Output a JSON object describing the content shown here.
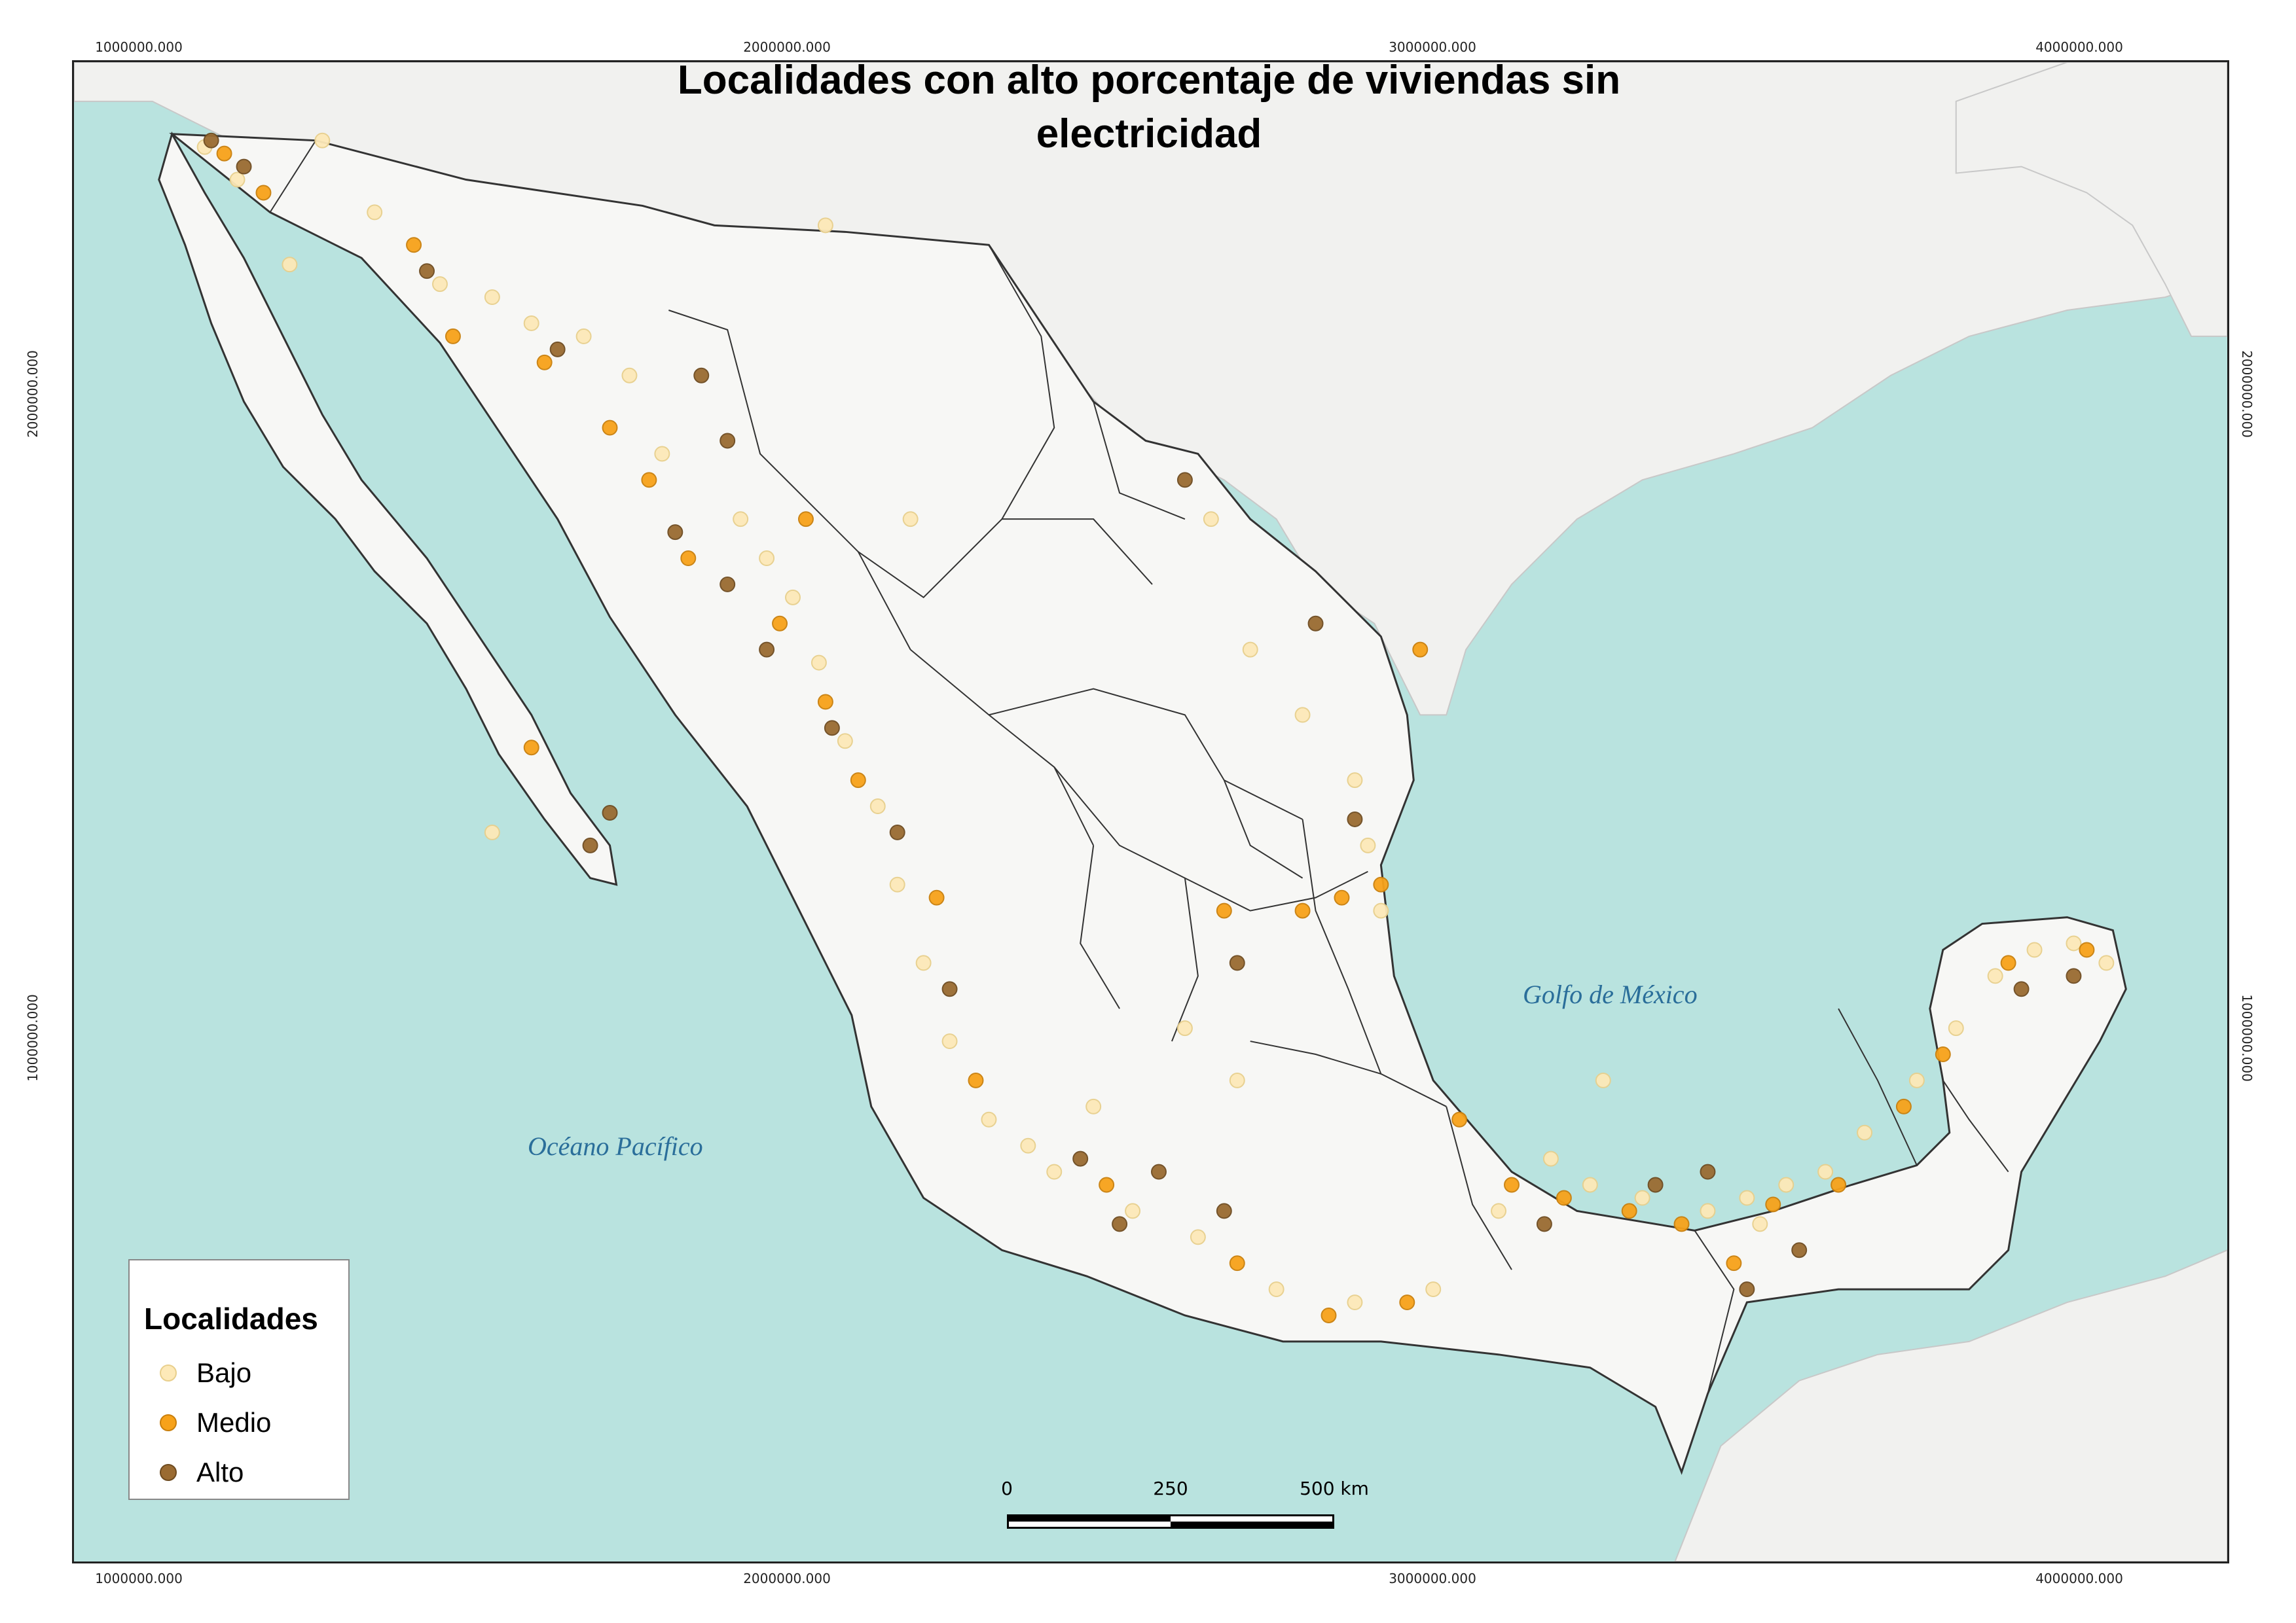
{
  "map": {
    "title_lines": [
      "Localidades con alto porcentaje de viviendas sin",
      "electricidad"
    ],
    "axis_labels": {
      "top": [
        "1000000.000",
        "2000000.000",
        "3000000.000",
        "4000000.000"
      ],
      "bottom": [
        "1000000.000",
        "2000000.000",
        "3000000.000",
        "4000000.000"
      ],
      "left": [
        "2000000.000",
        "1000000.000"
      ],
      "right": [
        "2000000.000",
        "1000000.000"
      ]
    },
    "sea_labels": {
      "gulf": "Golfo de México",
      "pacific": "Océano Pacífico"
    },
    "legend": {
      "title": "Localidades",
      "items": [
        {
          "label": "Bajo",
          "color": "#fde9b8"
        },
        {
          "label": "Medio",
          "color": "#f7a21a"
        },
        {
          "label": "Alto",
          "color": "#9a6b32"
        }
      ]
    },
    "scale": {
      "ticks": [
        "0",
        "250",
        "500 km"
      ]
    },
    "colors": {
      "water": "#b9e3df",
      "land": "#f3f3f1",
      "mexico_land": "#f7f7f5",
      "borders": "#333333"
    }
  }
}
